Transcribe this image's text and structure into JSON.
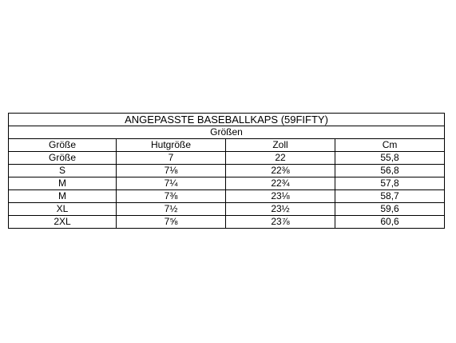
{
  "table": {
    "title": "ANGEPASSTE BASEBALLKAPS (59FIFTY)",
    "subtitle": "Größen",
    "header": [
      "Größe",
      "Hutgröße",
      "Zoll",
      "Cm"
    ],
    "rows": [
      [
        "Größe",
        "7",
        "22",
        "55,8"
      ],
      [
        "S",
        "7⅛",
        "22⅜",
        "56,8"
      ],
      [
        "M",
        "7¼",
        "22¾",
        "57,8"
      ],
      [
        "M",
        "7⅜",
        "23⅛",
        "58,7"
      ],
      [
        "XL",
        "7½",
        "23½",
        "59,6"
      ],
      [
        "2XL",
        "7⅝",
        "23⅞",
        "60,6"
      ]
    ]
  }
}
